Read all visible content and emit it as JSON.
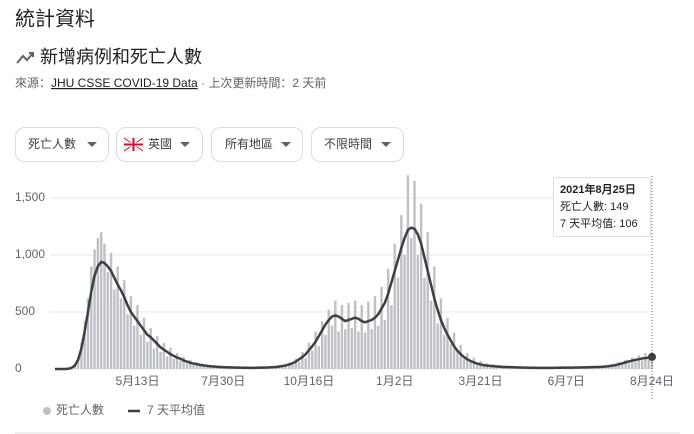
{
  "header": {
    "title": "統計資料",
    "subtitle": "新增病例和死亡人數",
    "source_label": "來源：",
    "source_link": "JHU CSSE COVID-19 Data",
    "updated": " · 上次更新時間：2 天前"
  },
  "filters": [
    "死亡人數",
    "英國",
    "所有地區",
    "不限時間"
  ],
  "chart_data": {
    "type": "bar",
    "categories": [
      null,
      null,
      null,
      null,
      null,
      null,
      null,
      null,
      null,
      null,
      null,
      null,
      null,
      null,
      null,
      null,
      null,
      null,
      null,
      null,
      null,
      null,
      null,
      null,
      null,
      "5月13日",
      null,
      null,
      null,
      null,
      null,
      null,
      null,
      null,
      null,
      null,
      null,
      null,
      null,
      null,
      null,
      null,
      null,
      null,
      null,
      null,
      null,
      null,
      null,
      null,
      null,
      "7月30日",
      null,
      null,
      null,
      null,
      null,
      null,
      null,
      null,
      null,
      null,
      null,
      null,
      null,
      null,
      null,
      null,
      null,
      null,
      null,
      null,
      null,
      null,
      null,
      null,
      null,
      "10月16日",
      null,
      null,
      null,
      null,
      null,
      null,
      null,
      null,
      null,
      null,
      null,
      null,
      null,
      null,
      null,
      null,
      null,
      null,
      null,
      null,
      null,
      null,
      null,
      null,
      null,
      "1月2日",
      null,
      null,
      null,
      null,
      null,
      null,
      null,
      null,
      null,
      null,
      null,
      null,
      null,
      null,
      null,
      null,
      null,
      null,
      null,
      null,
      null,
      null,
      null,
      null,
      null,
      "3月21日",
      null,
      null,
      null,
      null,
      null,
      null,
      null,
      null,
      null,
      null,
      null,
      null,
      null,
      null,
      null,
      null,
      null,
      null,
      null,
      null,
      null,
      null,
      null,
      null,
      null,
      "6月7日",
      null,
      null,
      null,
      null,
      null,
      null,
      null,
      null,
      null,
      null,
      null,
      null,
      null,
      null,
      null,
      null,
      null,
      null,
      null,
      null,
      null,
      null,
      null,
      null,
      null,
      "8月24日"
    ],
    "series": [
      {
        "name": "死亡人數",
        "type": "bar",
        "color": "#bdc1c6",
        "values": [
          0,
          0,
          0,
          0,
          3,
          15,
          40,
          110,
          230,
          420,
          620,
          900,
          1050,
          1150,
          1200,
          1100,
          850,
          1020,
          700,
          900,
          620,
          780,
          480,
          640,
          380,
          560,
          300,
          450,
          240,
          360,
          180,
          290,
          150,
          230,
          110,
          190,
          90,
          140,
          70,
          110,
          50,
          80,
          38,
          60,
          30,
          45,
          20,
          35,
          16,
          28,
          13,
          24,
          10,
          20,
          9,
          18,
          8,
          17,
          8,
          15,
          7,
          16,
          8,
          18,
          9,
          20,
          12,
          26,
          15,
          35,
          22,
          55,
          35,
          90,
          60,
          150,
          95,
          230,
          160,
          330,
          200,
          420,
          300,
          520,
          380,
          600,
          330,
          560,
          350,
          580,
          360,
          600,
          330,
          560,
          320,
          590,
          350,
          640,
          380,
          720,
          430,
          880,
          560,
          1100,
          800,
          1350,
          1000,
          1700,
          1150,
          1650,
          1000,
          1450,
          800,
          1200,
          600,
          900,
          400,
          620,
          300,
          450,
          220,
          320,
          150,
          210,
          90,
          140,
          60,
          100,
          40,
          70,
          25,
          50,
          20,
          42,
          18,
          35,
          14,
          28,
          12,
          24,
          10,
          22,
          9,
          20,
          8,
          18,
          8,
          17,
          7,
          16,
          8,
          17,
          8,
          18,
          9,
          20,
          8,
          18,
          9,
          20,
          10,
          22,
          11,
          24,
          13,
          27,
          15,
          32,
          18,
          42,
          25,
          60,
          40,
          80,
          50,
          100,
          65,
          120,
          75,
          140,
          90,
          149
        ]
      },
      {
        "name": "7 天平均值",
        "type": "line",
        "color": "#3c4043",
        "values": [
          0,
          0,
          0,
          0,
          2,
          10,
          30,
          80,
          180,
          330,
          500,
          680,
          820,
          900,
          940,
          930,
          900,
          860,
          800,
          740,
          690,
          630,
          560,
          500,
          460,
          420,
          380,
          340,
          300,
          280,
          250,
          220,
          190,
          170,
          150,
          130,
          115,
          100,
          90,
          75,
          65,
          55,
          48,
          42,
          36,
          32,
          28,
          24,
          22,
          20,
          18,
          16,
          15,
          14,
          13,
          12,
          12,
          11,
          11,
          10,
          10,
          11,
          12,
          12,
          13,
          14,
          16,
          18,
          22,
          26,
          32,
          40,
          50,
          65,
          85,
          105,
          130,
          165,
          200,
          240,
          290,
          340,
          390,
          430,
          460,
          470,
          460,
          440,
          420,
          430,
          440,
          450,
          440,
          420,
          410,
          420,
          430,
          450,
          480,
          530,
          580,
          660,
          760,
          860,
          960,
          1060,
          1150,
          1220,
          1240,
          1230,
          1180,
          1100,
          980,
          860,
          740,
          620,
          520,
          430,
          360,
          300,
          250,
          200,
          160,
          130,
          105,
          85,
          70,
          58,
          48,
          40,
          34,
          30,
          27,
          24,
          22,
          20,
          18,
          17,
          16,
          15,
          14,
          13,
          12,
          12,
          11,
          11,
          10,
          10,
          10,
          10,
          10,
          10,
          11,
          11,
          12,
          12,
          12,
          12,
          13,
          13,
          14,
          14,
          15,
          16,
          17,
          18,
          20,
          22,
          25,
          30,
          35,
          42,
          50,
          58,
          66,
          74,
          80,
          86,
          92,
          96,
          100,
          106
        ]
      }
    ],
    "ylim": [
      0,
      1700
    ],
    "yticks": [
      0,
      500,
      {
        "value": 1000,
        "label": "1,000"
      },
      {
        "value": 1500,
        "label": "1,500"
      }
    ],
    "grid": true,
    "legend": "bottom",
    "tooltip": {
      "date": "2021年8月25日",
      "labels": [
        "死亡人數: ",
        "7 天平均值: "
      ]
    }
  }
}
